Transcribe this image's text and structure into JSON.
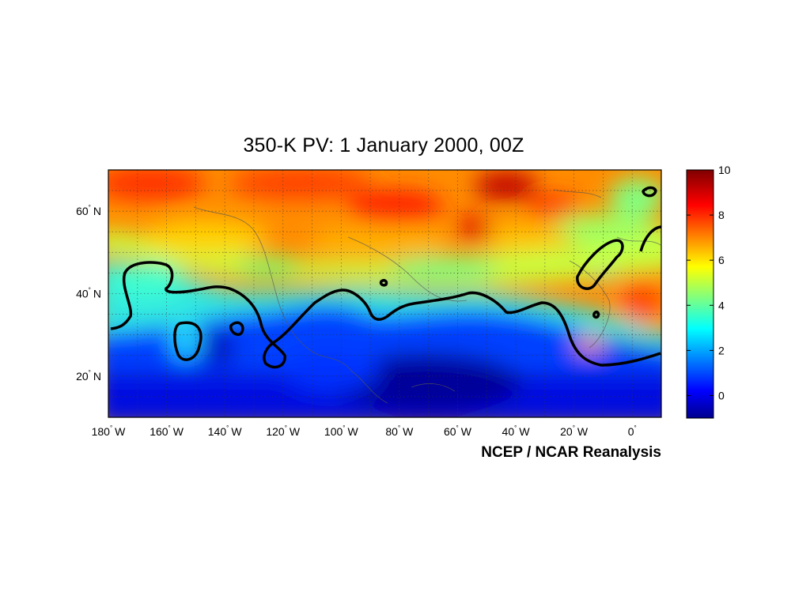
{
  "chart_data": {
    "type": "heatmap",
    "title": "350-K PV: 1 January 2000, 00Z",
    "xlabel": "",
    "ylabel": "",
    "credit": "NCEP / NCAR Reanalysis",
    "xlim": [
      -180,
      10
    ],
    "ylim": [
      10,
      70
    ],
    "x_ticks": [
      {
        "value": -180,
        "num": "180",
        "hemi": "W"
      },
      {
        "value": -160,
        "num": "160",
        "hemi": "W"
      },
      {
        "value": -140,
        "num": "140",
        "hemi": "W"
      },
      {
        "value": -120,
        "num": "120",
        "hemi": "W"
      },
      {
        "value": -100,
        "num": "100",
        "hemi": "W"
      },
      {
        "value": -80,
        "num": "80",
        "hemi": "W"
      },
      {
        "value": -60,
        "num": "60",
        "hemi": "W"
      },
      {
        "value": -40,
        "num": "40",
        "hemi": "W"
      },
      {
        "value": -20,
        "num": "20",
        "hemi": "W"
      },
      {
        "value": 0,
        "num": "0",
        "hemi": ""
      }
    ],
    "y_ticks": [
      {
        "value": 20,
        "num": "20",
        "hemi": "N"
      },
      {
        "value": 40,
        "num": "40",
        "hemi": "N"
      },
      {
        "value": 60,
        "num": "60",
        "hemi": "N"
      }
    ],
    "grid": true,
    "colorbar": {
      "min": -1,
      "max": 10,
      "ticks": [
        0,
        2,
        4,
        6,
        8,
        10
      ],
      "placement": "right",
      "colormap": "jet"
    },
    "contour_level": 2,
    "field_samples": [
      {
        "lon": -170,
        "lat": 65,
        "value": 7.5
      },
      {
        "lon": -120,
        "lat": 65,
        "value": 7.0
      },
      {
        "lon": -80,
        "lat": 63,
        "value": 8.5
      },
      {
        "lon": -40,
        "lat": 66,
        "value": 9.5
      },
      {
        "lon": -10,
        "lat": 62,
        "value": 7.5
      },
      {
        "lon": -150,
        "lat": 55,
        "value": 5.5
      },
      {
        "lon": -100,
        "lat": 52,
        "value": 6.0
      },
      {
        "lon": -50,
        "lat": 52,
        "value": 6.5
      },
      {
        "lon": -160,
        "lat": 42,
        "value": 3.0
      },
      {
        "lon": -120,
        "lat": 38,
        "value": 4.0
      },
      {
        "lon": -60,
        "lat": 38,
        "value": 3.0
      },
      {
        "lon": -10,
        "lat": 50,
        "value": 2.0
      },
      {
        "lon": 5,
        "lat": 40,
        "value": 7.5
      },
      {
        "lon": -148,
        "lat": 30,
        "value": 2.0
      },
      {
        "lon": -140,
        "lat": 27,
        "value": 0.8
      },
      {
        "lon": -100,
        "lat": 28,
        "value": 1.0
      },
      {
        "lon": -70,
        "lat": 18,
        "value": -0.3
      },
      {
        "lon": -40,
        "lat": 25,
        "value": 0.5
      },
      {
        "lon": -10,
        "lat": 30,
        "value": 2.5
      },
      {
        "lon": -150,
        "lat": 15,
        "value": 0.0
      },
      {
        "lon": -100,
        "lat": 12,
        "value": -0.2
      }
    ]
  }
}
